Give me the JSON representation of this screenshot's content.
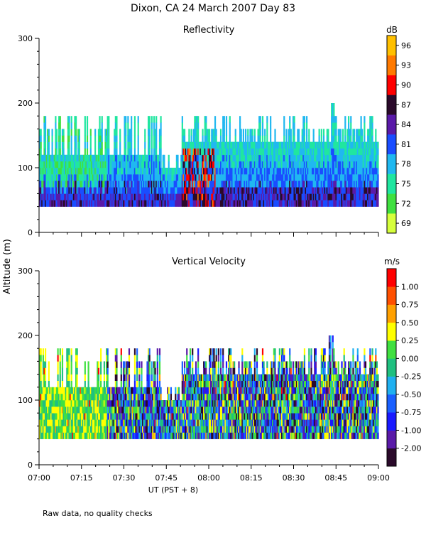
{
  "title": "Dixon, CA 24 March 2007  Day  83",
  "footnote": "Raw data, no quality checks",
  "shared_ylabel": "Altitude (m)",
  "chart_data": [
    {
      "type": "heatmap",
      "title": "Reflectivity",
      "unit": "dB",
      "xlabel": "UT  (PST + 8)",
      "xticks": [
        "07:00",
        "07:15",
        "07:30",
        "07:45",
        "08:00",
        "08:15",
        "08:30",
        "08:45",
        "09:00"
      ],
      "xlim": [
        "07:00",
        "09:00"
      ],
      "ylim": [
        0,
        300
      ],
      "yticks": [
        0,
        100,
        200,
        300
      ],
      "colorbar": {
        "labels": [
          "69",
          "72",
          "75",
          "78",
          "81",
          "84",
          "87",
          "90",
          "93",
          "96"
        ],
        "colors": [
          "#d6ff3c",
          "#40e040",
          "#20e6a0",
          "#20b8f0",
          "#1a4dff",
          "#5a1aa8",
          "#2a0a2a",
          "#ff0000",
          "#ff7a00",
          "#ffc000"
        ]
      },
      "data_extent": {
        "base_altitude": 40,
        "top_altitude_range": [
          120,
          200
        ]
      }
    },
    {
      "type": "heatmap",
      "title": "Vertical Velocity",
      "unit": "m/s",
      "xlabel": "UT  (PST + 8)",
      "xticks": [
        "07:00",
        "07:15",
        "07:30",
        "07:45",
        "08:00",
        "08:15",
        "08:30",
        "08:45",
        "09:00"
      ],
      "xlim": [
        "07:00",
        "09:00"
      ],
      "ylim": [
        0,
        300
      ],
      "yticks": [
        0,
        100,
        200,
        300
      ],
      "colorbar": {
        "labels": [
          "-2.00",
          "-1.00",
          "-0.75",
          "-0.50",
          "-0.25",
          "0.00",
          "0.25",
          "0.50",
          "0.75",
          "1.00"
        ],
        "colors": [
          "#2a0a2a",
          "#5a1aa8",
          "#1a1aff",
          "#1a60ff",
          "#20b0f0",
          "#20c080",
          "#40e040",
          "#ffff00",
          "#ffa000",
          "#ff5000",
          "#ff0000"
        ]
      },
      "data_extent": {
        "base_altitude": 40,
        "top_altitude_range": [
          120,
          200
        ]
      }
    }
  ]
}
